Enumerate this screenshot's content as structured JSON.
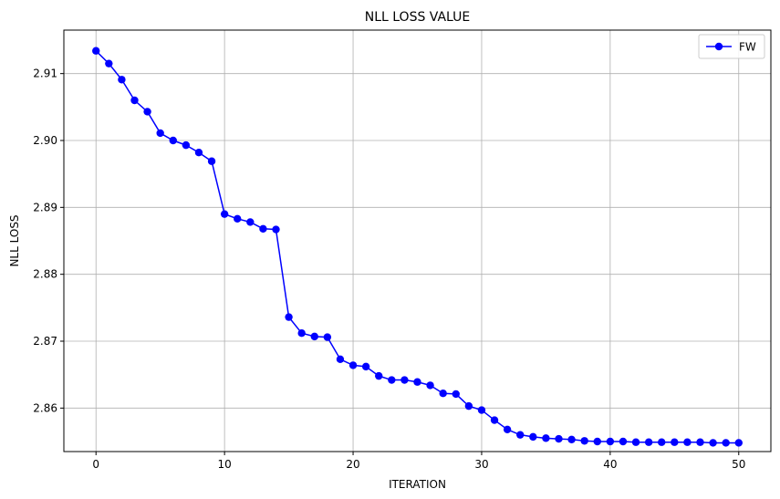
{
  "chart_data": {
    "type": "line",
    "title": "NLL LOSS VALUE",
    "xlabel": "ITERATION",
    "ylabel": "NLL LOSS",
    "xlim": [
      -2.5,
      52.5
    ],
    "ylim": [
      2.8535,
      2.9165
    ],
    "xticks": [
      0,
      10,
      20,
      30,
      40,
      50
    ],
    "yticks": [
      2.86,
      2.87,
      2.88,
      2.89,
      2.9,
      2.91
    ],
    "xtick_labels": [
      "0",
      "10",
      "20",
      "30",
      "40",
      "50"
    ],
    "ytick_labels": [
      "2.86",
      "2.87",
      "2.88",
      "2.89",
      "2.90",
      "2.91"
    ],
    "grid": true,
    "legend": {
      "position": "top-right",
      "entries": [
        "FW"
      ]
    },
    "series": [
      {
        "name": "FW",
        "color": "#0000ff",
        "marker": "circle",
        "x": [
          0,
          1,
          2,
          3,
          4,
          5,
          6,
          7,
          8,
          9,
          10,
          11,
          12,
          13,
          14,
          15,
          16,
          17,
          18,
          19,
          20,
          21,
          22,
          23,
          24,
          25,
          26,
          27,
          28,
          29,
          30,
          31,
          32,
          33,
          34,
          35,
          36,
          37,
          38,
          39,
          40,
          41,
          42,
          43,
          44,
          45,
          46,
          47,
          48,
          49,
          50
        ],
        "values": [
          2.9134,
          2.9115,
          2.9091,
          2.906,
          2.9043,
          2.9011,
          2.9,
          2.8993,
          2.8982,
          2.8969,
          2.889,
          2.8883,
          2.8878,
          2.8868,
          2.8867,
          2.8736,
          2.8712,
          2.8707,
          2.8706,
          2.8673,
          2.8664,
          2.8662,
          2.8648,
          2.8642,
          2.8642,
          2.8639,
          2.8634,
          2.8622,
          2.8621,
          2.8603,
          2.8597,
          2.8582,
          2.8568,
          2.856,
          2.8557,
          2.8555,
          2.8554,
          2.8553,
          2.8551,
          2.855,
          2.855,
          2.855,
          2.8549,
          2.8549,
          2.8549,
          2.8549,
          2.8549,
          2.8549,
          2.8548,
          2.8548,
          2.8548
        ]
      }
    ]
  }
}
